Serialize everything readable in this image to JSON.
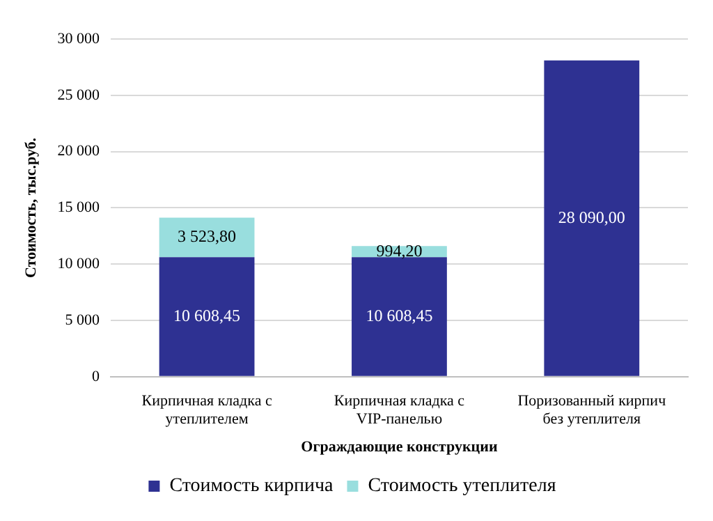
{
  "chart_data": {
    "type": "bar",
    "stacked": true,
    "xlabel": "Ограждающие конструкции",
    "ylabel": "Стоимость, тыс.руб.",
    "categories": [
      "Кирпичная кладка с утеплителем",
      "Кирпичная кладка с VIP-панелью",
      "Поризованный кирпич без утеплителя"
    ],
    "series": [
      {
        "name": "Стоимость кирпича",
        "color": "#2e3192",
        "values": [
          10608.45,
          10608.45,
          28090
        ],
        "value_labels": [
          "10 608,45",
          "10 608,45",
          "28 090,00"
        ]
      },
      {
        "name": "Стоимость утеплителя",
        "color": "#99dede",
        "values": [
          3523.8,
          994.2,
          null
        ],
        "value_labels": [
          "3 523,80",
          "994,20",
          null
        ]
      }
    ],
    "ylim": [
      0,
      30000
    ],
    "yticks": [
      {
        "value": 0,
        "label": "0"
      },
      {
        "value": 5000,
        "label": "5 000"
      },
      {
        "value": 10000,
        "label": "10 000"
      },
      {
        "value": 15000,
        "label": "15 000"
      },
      {
        "value": 20000,
        "label": "20 000"
      },
      {
        "value": 25000,
        "label": "25 000"
      },
      {
        "value": 30000,
        "label": "30 000"
      }
    ],
    "grid": "y",
    "legend": "bottom"
  }
}
